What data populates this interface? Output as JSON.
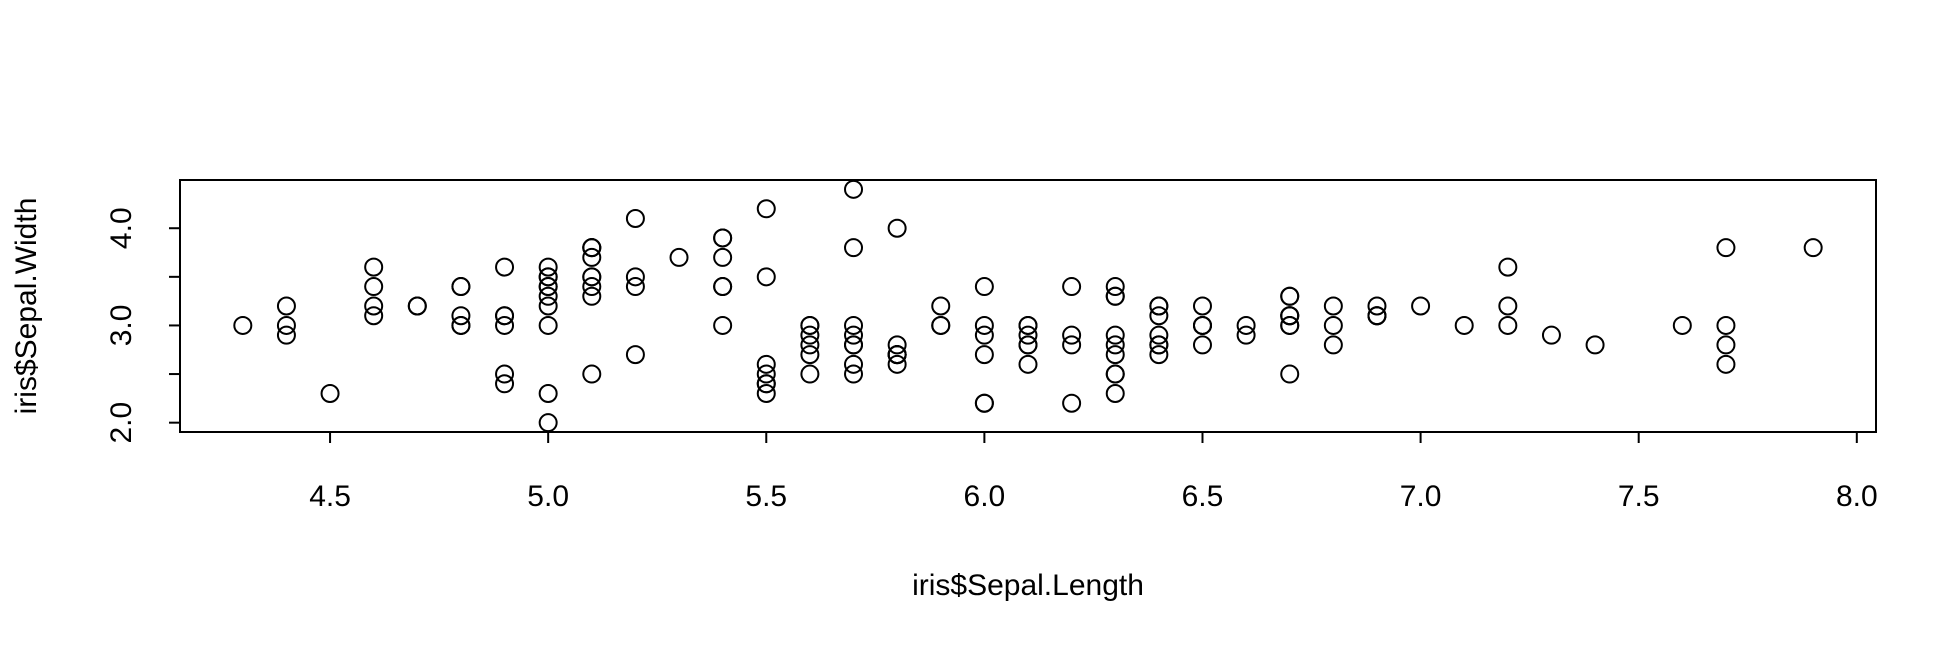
{
  "chart_data": {
    "type": "scatter",
    "x_label": "iris$Sepal.Length",
    "y_label": "iris$Sepal.Width",
    "x": [
      5.1,
      4.9,
      4.7,
      4.6,
      5.0,
      5.4,
      4.6,
      5.0,
      4.4,
      4.9,
      5.4,
      4.8,
      4.8,
      4.3,
      5.8,
      5.7,
      5.4,
      5.1,
      5.7,
      5.1,
      5.4,
      5.1,
      4.6,
      5.1,
      4.8,
      5.0,
      5.0,
      5.2,
      5.2,
      4.7,
      4.8,
      5.4,
      5.2,
      5.5,
      4.9,
      5.0,
      5.5,
      4.9,
      4.4,
      5.1,
      5.0,
      4.5,
      4.4,
      5.0,
      5.1,
      4.8,
      5.1,
      4.6,
      5.3,
      5.0,
      7.0,
      6.4,
      6.9,
      5.5,
      6.5,
      5.7,
      6.3,
      4.9,
      6.6,
      5.2,
      5.0,
      5.9,
      6.0,
      6.1,
      5.6,
      6.7,
      5.6,
      5.8,
      6.2,
      5.6,
      5.9,
      6.1,
      6.3,
      6.1,
      6.4,
      6.6,
      6.8,
      6.7,
      6.0,
      5.7,
      5.5,
      5.5,
      5.8,
      6.0,
      5.4,
      6.0,
      6.7,
      6.3,
      5.6,
      5.5,
      5.5,
      6.1,
      5.8,
      5.0,
      5.6,
      5.7,
      5.7,
      6.2,
      5.1,
      5.7,
      6.3,
      5.8,
      7.1,
      6.3,
      6.5,
      7.6,
      4.9,
      7.3,
      6.7,
      7.2,
      6.5,
      6.4,
      6.8,
      5.7,
      5.8,
      6.4,
      6.5,
      7.7,
      7.7,
      6.0,
      6.9,
      5.6,
      7.7,
      6.3,
      6.7,
      7.2,
      6.2,
      6.1,
      6.4,
      7.2,
      7.4,
      7.9,
      6.4,
      6.3,
      6.1,
      7.7,
      6.3,
      6.4,
      6.0,
      6.9,
      6.7,
      6.9,
      5.8,
      6.8,
      6.7,
      6.7,
      6.3,
      6.5,
      6.2,
      5.9
    ],
    "values": [
      3.5,
      3.0,
      3.2,
      3.1,
      3.6,
      3.9,
      3.4,
      3.4,
      2.9,
      3.1,
      3.7,
      3.4,
      3.0,
      3.0,
      4.0,
      4.4,
      3.9,
      3.5,
      3.8,
      3.8,
      3.4,
      3.7,
      3.6,
      3.3,
      3.4,
      3.0,
      3.4,
      3.5,
      3.4,
      3.2,
      3.1,
      3.4,
      4.1,
      4.2,
      3.1,
      3.2,
      3.5,
      3.6,
      3.0,
      3.4,
      3.5,
      2.3,
      3.2,
      3.5,
      3.8,
      3.0,
      3.8,
      3.2,
      3.7,
      3.3,
      3.2,
      3.2,
      3.1,
      2.3,
      2.8,
      2.8,
      3.3,
      2.4,
      2.9,
      2.7,
      2.0,
      3.0,
      2.2,
      2.9,
      2.9,
      3.1,
      3.0,
      2.7,
      2.2,
      2.5,
      3.2,
      2.8,
      2.5,
      2.8,
      2.9,
      3.0,
      2.8,
      3.0,
      2.9,
      2.6,
      2.4,
      2.4,
      2.7,
      2.7,
      3.0,
      3.4,
      3.1,
      2.3,
      3.0,
      2.5,
      2.6,
      3.0,
      2.6,
      2.3,
      2.7,
      3.0,
      2.9,
      2.9,
      2.5,
      2.8,
      3.3,
      2.7,
      3.0,
      2.9,
      3.0,
      3.0,
      2.5,
      2.9,
      2.5,
      3.6,
      3.2,
      2.7,
      3.0,
      2.5,
      2.8,
      3.2,
      3.0,
      3.8,
      2.6,
      2.2,
      3.2,
      2.8,
      2.8,
      2.7,
      3.3,
      3.2,
      2.8,
      3.0,
      2.8,
      3.0,
      2.8,
      3.8,
      2.8,
      2.8,
      2.6,
      3.0,
      3.4,
      3.1,
      3.0,
      3.1,
      3.1,
      3.1,
      2.7,
      3.2,
      3.3,
      3.0,
      2.5,
      3.0,
      3.4,
      3.0
    ],
    "color": "#000000",
    "xlim": [
      4.156,
      8.044
    ],
    "ylim": [
      1.904,
      4.496
    ],
    "xticks": [
      4.5,
      {
        "value": 5,
        "label": "5.0"
      },
      5.5,
      {
        "value": 6,
        "label": "6.0"
      },
      6.5,
      {
        "value": 7,
        "label": "7.0"
      },
      7.5,
      {
        "value": 8,
        "label": "8.0"
      }
    ],
    "yticks": [
      {
        "value": 2,
        "label": "2.0"
      },
      {
        "value": 2.5,
        "label": null
      },
      {
        "value": 3,
        "label": "3.0"
      },
      {
        "value": 3.5,
        "label": null
      },
      {
        "value": 4,
        "label": "4.0"
      }
    ],
    "grid": false
  }
}
